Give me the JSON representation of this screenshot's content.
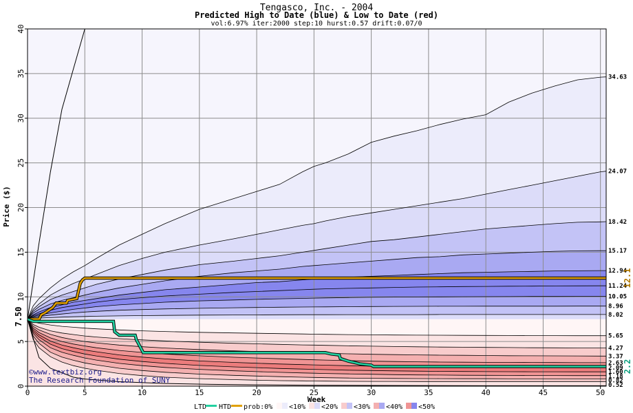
{
  "colors": {
    "plot_bg": "#f6f5fd",
    "band_10": "#ececfb",
    "band_20": "#dcdcf9",
    "band_30": "#c3c3f6",
    "band_40": "#a9a9f2",
    "band_50": "#8686ee",
    "low_band_0": "#fff6f6",
    "low_band_10": "#fbe4e4",
    "low_band_20": "#f8cccc",
    "low_band_30": "#f4b0b0",
    "low_band_40": "#f09494",
    "low_band_50": "#ec7c7c",
    "htd": "#e0a000",
    "ltd": "#22d0a0",
    "grid": "#8c8c8c",
    "edge_line": "#000000",
    "label_high": "#b07800",
    "label_low": "#10a080"
  },
  "chart_data": {
    "type": "area",
    "title": "Tengasco, Inc. - 2004",
    "subtitle": "Predicted High to Date (blue) &  Low to Date (red)",
    "params": "vol:6.97% iter:2000 step:10 hurst:0.57 drift:0.07/0",
    "xlabel": "Week",
    "ylabel": "Price ($)",
    "xlim": [
      0,
      50.5
    ],
    "ylim": [
      0,
      40
    ],
    "x_ticks": [
      0,
      5,
      10,
      15,
      20,
      25,
      30,
      35,
      40,
      45,
      50
    ],
    "y_ticks": [
      0,
      5,
      10,
      15,
      20,
      25,
      30,
      35,
      40
    ],
    "grid": true,
    "x": [
      0,
      0.5,
      1,
      2,
      3,
      4,
      5,
      6,
      8,
      10,
      12,
      15,
      18,
      20,
      22,
      24,
      25,
      26,
      28,
      30,
      32,
      34,
      36,
      38,
      40,
      42,
      44,
      46,
      48,
      50,
      50.5
    ],
    "start_price": 7.5,
    "start_label": "7.50",
    "high_curves": [
      {
        "label": "34.63",
        "values": [
          7.5,
          9.0,
          9.8,
          11.0,
          12.0,
          12.8,
          13.5,
          14.3,
          15.8,
          17.0,
          18.2,
          19.8,
          21.0,
          21.8,
          22.6,
          24.0,
          24.6,
          25.0,
          26.0,
          27.3,
          28.0,
          28.6,
          29.3,
          29.9,
          30.4,
          31.8,
          32.8,
          33.6,
          34.3,
          34.6,
          34.63
        ]
      },
      {
        "label": "24.07",
        "values": [
          7.5,
          8.6,
          9.2,
          10.2,
          10.9,
          11.5,
          12.0,
          12.5,
          13.5,
          14.3,
          15.0,
          15.8,
          16.5,
          17.0,
          17.5,
          18.0,
          18.2,
          18.5,
          19.0,
          19.4,
          19.8,
          20.2,
          20.6,
          21.0,
          21.5,
          22.0,
          22.5,
          23.0,
          23.5,
          24.0,
          24.07
        ]
      },
      {
        "label": "18.42",
        "values": [
          7.5,
          8.4,
          8.9,
          9.7,
          10.2,
          10.6,
          11.0,
          11.4,
          12.0,
          12.5,
          13.0,
          13.6,
          14.0,
          14.3,
          14.6,
          15.0,
          15.2,
          15.4,
          15.8,
          16.2,
          16.4,
          16.7,
          17.0,
          17.3,
          17.6,
          17.8,
          18.0,
          18.2,
          18.35,
          18.4,
          18.42
        ]
      },
      {
        "label": "15.17",
        "values": [
          7.5,
          8.2,
          8.6,
          9.2,
          9.6,
          9.9,
          10.2,
          10.5,
          11.0,
          11.4,
          11.8,
          12.3,
          12.7,
          12.9,
          13.1,
          13.4,
          13.5,
          13.6,
          13.8,
          14.0,
          14.2,
          14.4,
          14.5,
          14.7,
          14.8,
          14.9,
          15.0,
          15.1,
          15.15,
          15.17,
          15.17
        ]
      },
      {
        "label": "12.94",
        "values": [
          7.5,
          8.0,
          8.3,
          8.8,
          9.1,
          9.4,
          9.6,
          9.8,
          10.2,
          10.5,
          10.8,
          11.1,
          11.4,
          11.6,
          11.7,
          11.9,
          12.0,
          12.1,
          12.2,
          12.3,
          12.4,
          12.5,
          12.6,
          12.7,
          12.75,
          12.8,
          12.85,
          12.9,
          12.92,
          12.94,
          12.94
        ]
      },
      {
        "label": "11.24",
        "values": [
          7.5,
          7.9,
          8.1,
          8.5,
          8.8,
          9.0,
          9.2,
          9.4,
          9.7,
          9.9,
          10.1,
          10.3,
          10.5,
          10.6,
          10.7,
          10.8,
          10.85,
          10.9,
          10.95,
          11.0,
          11.05,
          11.1,
          11.12,
          11.15,
          11.17,
          11.19,
          11.2,
          11.22,
          11.23,
          11.24,
          11.24
        ]
      },
      {
        "label": "10.05",
        "values": [
          7.5,
          7.8,
          7.95,
          8.2,
          8.4,
          8.6,
          8.75,
          8.9,
          9.1,
          9.25,
          9.4,
          9.55,
          9.65,
          9.72,
          9.78,
          9.83,
          9.86,
          9.88,
          9.92,
          9.95,
          9.97,
          9.99,
          10.0,
          10.01,
          10.02,
          10.03,
          10.04,
          10.04,
          10.05,
          10.05,
          10.05
        ]
      },
      {
        "label": "8.96",
        "values": [
          7.5,
          7.7,
          7.8,
          7.95,
          8.08,
          8.2,
          8.3,
          8.38,
          8.5,
          8.58,
          8.65,
          8.72,
          8.78,
          8.81,
          8.84,
          8.86,
          8.87,
          8.88,
          8.9,
          8.92,
          8.93,
          8.94,
          8.945,
          8.95,
          8.952,
          8.955,
          8.957,
          8.958,
          8.96,
          8.96,
          8.96
        ]
      },
      {
        "label": "8.02",
        "values": [
          7.5,
          7.58,
          7.62,
          7.68,
          7.73,
          7.77,
          7.8,
          7.83,
          7.87,
          7.9,
          7.92,
          7.95,
          7.97,
          7.98,
          7.99,
          8.0,
          8.0,
          8.0,
          8.01,
          8.01,
          8.01,
          8.01,
          8.02,
          8.02,
          8.02,
          8.02,
          8.02,
          8.02,
          8.02,
          8.02,
          8.02
        ]
      }
    ],
    "low_curves": [
      {
        "label": "5.65",
        "values": [
          7.5,
          7.2,
          7.05,
          6.85,
          6.7,
          6.6,
          6.5,
          6.42,
          6.3,
          6.2,
          6.12,
          6.03,
          5.96,
          5.92,
          5.88,
          5.84,
          5.82,
          5.8,
          5.77,
          5.75,
          5.73,
          5.71,
          5.7,
          5.69,
          5.68,
          5.67,
          5.66,
          5.66,
          5.65,
          5.65,
          5.65
        ]
      },
      {
        "label": "4.27",
        "values": [
          7.5,
          6.9,
          6.6,
          6.2,
          5.95,
          5.78,
          5.62,
          5.5,
          5.32,
          5.18,
          5.06,
          4.92,
          4.8,
          4.74,
          4.68,
          4.62,
          4.6,
          4.57,
          4.52,
          4.48,
          4.44,
          4.41,
          4.38,
          4.36,
          4.34,
          4.32,
          4.3,
          4.29,
          4.28,
          4.27,
          4.27
        ]
      },
      {
        "label": "3.37",
        "values": [
          7.5,
          6.7,
          6.3,
          5.8,
          5.45,
          5.2,
          5.0,
          4.85,
          4.6,
          4.42,
          4.27,
          4.1,
          3.96,
          3.88,
          3.81,
          3.74,
          3.71,
          3.68,
          3.62,
          3.57,
          3.53,
          3.5,
          3.47,
          3.45,
          3.43,
          3.41,
          3.4,
          3.39,
          3.38,
          3.37,
          3.37
        ]
      },
      {
        "label": "2.63",
        "values": [
          7.5,
          6.5,
          6.0,
          5.4,
          5.0,
          4.72,
          4.5,
          4.3,
          4.0,
          3.78,
          3.6,
          3.4,
          3.24,
          3.15,
          3.07,
          2.99,
          2.95,
          2.92,
          2.86,
          2.8,
          2.76,
          2.73,
          2.7,
          2.68,
          2.67,
          2.66,
          2.65,
          2.64,
          2.63,
          2.63,
          2.63
        ]
      },
      {
        "label": "2.09",
        "values": [
          7.5,
          6.3,
          5.75,
          5.05,
          4.6,
          4.3,
          4.05,
          3.85,
          3.5,
          3.25,
          3.05,
          2.82,
          2.66,
          2.57,
          2.48,
          2.41,
          2.38,
          2.35,
          2.29,
          2.24,
          2.2,
          2.17,
          2.15,
          2.13,
          2.12,
          2.11,
          2.1,
          2.1,
          2.09,
          2.09,
          2.09
        ]
      },
      {
        "label": "1.60",
        "values": [
          7.5,
          6.1,
          5.5,
          4.7,
          4.2,
          3.88,
          3.6,
          3.38,
          3.02,
          2.76,
          2.55,
          2.32,
          2.16,
          2.07,
          1.98,
          1.91,
          1.88,
          1.85,
          1.79,
          1.75,
          1.71,
          1.68,
          1.66,
          1.64,
          1.63,
          1.62,
          1.61,
          1.61,
          1.6,
          1.6,
          1.6
        ]
      },
      {
        "label": "1.18",
        "values": [
          7.5,
          5.9,
          5.2,
          4.3,
          3.8,
          3.45,
          3.15,
          2.92,
          2.55,
          2.3,
          2.1,
          1.88,
          1.72,
          1.63,
          1.55,
          1.48,
          1.45,
          1.42,
          1.37,
          1.33,
          1.29,
          1.26,
          1.24,
          1.22,
          1.21,
          1.2,
          1.19,
          1.19,
          1.18,
          1.18,
          1.18
        ]
      },
      {
        "label": "0.82",
        "values": [
          7.5,
          5.6,
          4.8,
          3.8,
          3.25,
          2.9,
          2.6,
          2.38,
          2.0,
          1.75,
          1.56,
          1.35,
          1.21,
          1.13,
          1.06,
          1.0,
          0.98,
          0.95,
          0.91,
          0.88,
          0.86,
          0.85,
          0.84,
          0.83,
          0.83,
          0.82,
          0.82,
          0.82,
          0.82,
          0.82,
          0.82
        ]
      },
      {
        "label": "0.52",
        "values": [
          7.5,
          5.2,
          4.3,
          3.3,
          2.7,
          2.3,
          2.0,
          1.78,
          1.42,
          1.18,
          1.0,
          0.84,
          0.73,
          0.67,
          0.62,
          0.59,
          0.57,
          0.56,
          0.54,
          0.53,
          0.53,
          0.52,
          0.52,
          0.52,
          0.52,
          0.52,
          0.52,
          0.52,
          0.52,
          0.52,
          0.52
        ]
      }
    ],
    "extreme_high": {
      "x": [
        0,
        1,
        2,
        3,
        4,
        5
      ],
      "values": [
        7.5,
        16.0,
        24.0,
        31.0,
        35.5,
        40.0
      ]
    },
    "extreme_low": {
      "x": [
        0,
        1,
        2,
        3,
        4,
        5,
        8,
        12,
        16,
        20,
        25,
        30,
        40,
        50.5
      ],
      "values": [
        7.5,
        3.2,
        2.0,
        1.5,
        1.0,
        0.8,
        0.5,
        0.3,
        0.2,
        0.15,
        0.1,
        0.08,
        0.05,
        0.05
      ]
    },
    "htd": {
      "name": "HTD",
      "x": [
        0,
        1,
        1.2,
        1.5,
        2.2,
        2.5,
        3.4,
        3.5,
        4.3,
        4.6,
        4.8,
        5.0,
        50.5
      ],
      "values": [
        7.5,
        7.5,
        8.0,
        8.2,
        8.8,
        9.3,
        9.3,
        9.6,
        9.8,
        11.5,
        11.9,
        12.1,
        12.1
      ],
      "end_label": "12.1"
    },
    "ltd": {
      "name": "LTD",
      "x": [
        0,
        0.5,
        7.5,
        7.6,
        8.0,
        9.4,
        9.5,
        10.0,
        10.1,
        26.0,
        26.5,
        27.2,
        27.3,
        28.0,
        29.0,
        30.0,
        30.2,
        50.5
      ],
      "values": [
        7.5,
        7.25,
        7.25,
        6.1,
        5.7,
        5.7,
        5.2,
        4.0,
        3.75,
        3.75,
        3.6,
        3.5,
        3.1,
        2.8,
        2.5,
        2.35,
        2.2,
        2.2
      ],
      "end_label": "2.2"
    },
    "legend": [
      "LTD",
      "HTD",
      "prob:0%",
      "<10%",
      "<20%",
      "<30%",
      "<40%",
      "<50%"
    ],
    "credit_line1": "©www.textbiz.org",
    "credit_line2": "The Research Foundation of SUNY"
  }
}
